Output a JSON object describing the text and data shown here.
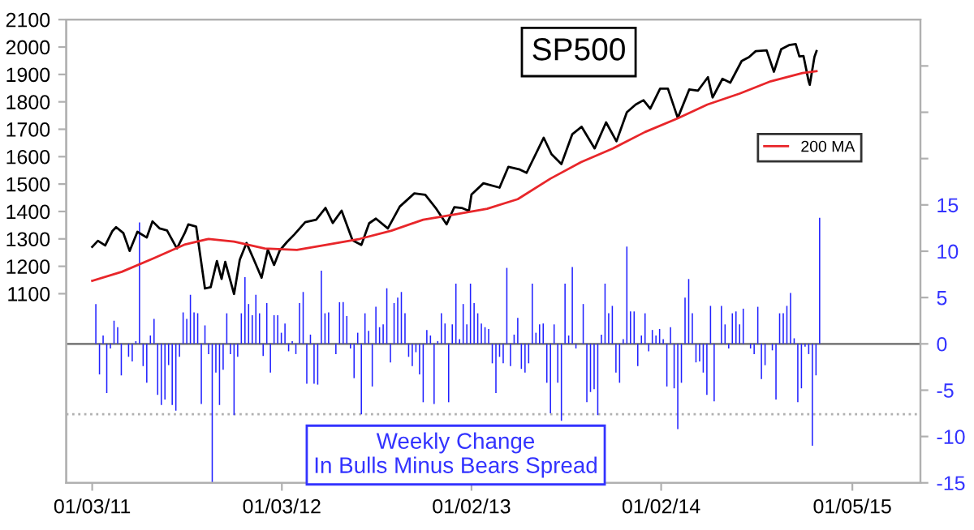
{
  "chart_data": {
    "type": "line",
    "title": "SP500",
    "annotations": [
      "Weekly Change\nIn Bulls Minus Bears Spread"
    ],
    "xlim": [
      "2010-11-14",
      "2015-05-16"
    ],
    "xticks": [
      {
        "value": "2011-01-03",
        "label": "01/03/11"
      },
      {
        "value": "2012-01-03",
        "label": "01/03/12"
      },
      {
        "value": "2013-01-02",
        "label": "01/02/13"
      },
      {
        "value": "2014-01-02",
        "label": "01/02/14"
      },
      {
        "value": "2015-01-05",
        "label": "01/05/15"
      }
    ],
    "ylim": [
      410,
      2100
    ],
    "yticks": [
      1100,
      1200,
      1300,
      1400,
      1500,
      1600,
      1700,
      1800,
      1900,
      2000,
      2100
    ],
    "y2lim": [
      -15,
      35
    ],
    "y2ticks": [
      -15,
      -10,
      -5,
      0,
      5,
      10,
      15,
      {
        "value": 20,
        "label": null
      },
      {
        "value": 25,
        "label": null
      },
      {
        "value": 30,
        "label": null
      }
    ],
    "legend": "upper right",
    "grid": false,
    "ref_lines": [
      {
        "axis": "y2",
        "value": 0,
        "color": "#808080",
        "line_style": "solid"
      },
      {
        "axis": "y2",
        "value": -7.6,
        "color": "#b0b0b0",
        "line_style": "dotted"
      }
    ],
    "series": [
      {
        "color": "#000000",
        "x": [
          "2011-01-03",
          "2011-01-14",
          "2011-01-28",
          "2011-02-11",
          "2011-02-18",
          "2011-03-04",
          "2011-03-16",
          "2011-03-31",
          "2011-04-18",
          "2011-04-29",
          "2011-05-13",
          "2011-05-27",
          "2011-06-15",
          "2011-06-30",
          "2011-07-07",
          "2011-07-22",
          "2011-08-08",
          "2011-08-19",
          "2011-08-31",
          "2011-09-09",
          "2011-09-16",
          "2011-10-03",
          "2011-10-14",
          "2011-10-27",
          "2011-11-09",
          "2011-11-25",
          "2011-12-07",
          "2011-12-19",
          "2011-12-30",
          "2012-01-13",
          "2012-01-27",
          "2012-02-17",
          "2012-03-09",
          "2012-03-27",
          "2012-04-10",
          "2012-04-27",
          "2012-05-18",
          "2012-06-04",
          "2012-06-19",
          "2012-07-02",
          "2012-07-25",
          "2012-08-17",
          "2012-09-14",
          "2012-10-05",
          "2012-10-25",
          "2012-11-15",
          "2012-11-30",
          "2012-12-14",
          "2012-12-28",
          "2013-01-02",
          "2013-01-25",
          "2013-02-25",
          "2013-03-14",
          "2013-04-05",
          "2013-04-18",
          "2013-05-21",
          "2013-06-05",
          "2013-06-24",
          "2013-07-15",
          "2013-08-02",
          "2013-08-27",
          "2013-09-18",
          "2013-10-08",
          "2013-10-28",
          "2013-11-14",
          "2013-11-29",
          "2013-12-12",
          "2013-12-31",
          "2014-01-15",
          "2014-02-03",
          "2014-02-25",
          "2014-03-14",
          "2014-04-02",
          "2014-04-11",
          "2014-04-30",
          "2014-05-15",
          "2014-06-06",
          "2014-06-20",
          "2014-07-03",
          "2014-07-24",
          "2014-08-07",
          "2014-08-21",
          "2014-09-05",
          "2014-09-18",
          "2014-09-25",
          "2014-10-03",
          "2014-10-13",
          "2014-10-15",
          "2014-10-24",
          "2014-10-28"
        ],
        "values": [
          1271,
          1293,
          1276,
          1329,
          1343,
          1321,
          1256,
          1326,
          1305,
          1364,
          1338,
          1331,
          1265,
          1321,
          1353,
          1345,
          1119,
          1124,
          1219,
          1154,
          1216,
          1099,
          1224,
          1285,
          1229,
          1158,
          1261,
          1205,
          1258,
          1289,
          1316,
          1361,
          1370,
          1413,
          1358,
          1403,
          1295,
          1278,
          1357,
          1374,
          1338,
          1418,
          1466,
          1461,
          1413,
          1353,
          1416,
          1413,
          1402,
          1462,
          1503,
          1487,
          1563,
          1553,
          1541,
          1669,
          1609,
          1573,
          1682,
          1709,
          1630,
          1725,
          1656,
          1762,
          1790,
          1806,
          1775,
          1848,
          1848,
          1741,
          1845,
          1841,
          1890,
          1816,
          1884,
          1870,
          1949,
          1963,
          1985,
          1988,
          1910,
          1992,
          2007,
          2011,
          1966,
          1967,
          1874,
          1862,
          1964,
          1985
        ]
      },
      {
        "type": "line",
        "name": "200 MA",
        "color": "#e8262a",
        "x": [
          "2011-01-03",
          "2011-03-01",
          "2011-05-02",
          "2011-07-01",
          "2011-08-15",
          "2011-10-03",
          "2011-12-01",
          "2012-02-01",
          "2012-04-02",
          "2012-06-01",
          "2012-08-01",
          "2012-10-01",
          "2012-12-03",
          "2013-02-01",
          "2013-04-01",
          "2013-06-03",
          "2013-08-01",
          "2013-10-01",
          "2013-12-02",
          "2014-02-03",
          "2014-04-01",
          "2014-06-02",
          "2014-08-01",
          "2014-10-01",
          "2014-10-28"
        ],
        "values": [
          1147,
          1180,
          1230,
          1280,
          1300,
          1290,
          1265,
          1260,
          1280,
          1300,
          1330,
          1370,
          1390,
          1410,
          1445,
          1520,
          1580,
          1630,
          1690,
          1740,
          1790,
          1830,
          1875,
          1905,
          1912
        ]
      },
      {
        "type": "bar",
        "axis": "y2",
        "color": "#2020ff",
        "x": [
          "2011-01-10",
          "2011-01-17",
          "2011-01-24",
          "2011-01-31",
          "2011-02-07",
          "2011-02-14",
          "2011-02-21",
          "2011-02-28",
          "2011-03-07",
          "2011-03-14",
          "2011-03-21",
          "2011-03-28",
          "2011-04-04",
          "2011-04-11",
          "2011-04-18",
          "2011-04-25",
          "2011-05-02",
          "2011-05-09",
          "2011-05-16",
          "2011-05-23",
          "2011-05-30",
          "2011-06-06",
          "2011-06-13",
          "2011-06-20",
          "2011-06-27",
          "2011-07-04",
          "2011-07-11",
          "2011-07-18",
          "2011-07-25",
          "2011-08-01",
          "2011-08-08",
          "2011-08-15",
          "2011-08-22",
          "2011-08-29",
          "2011-09-05",
          "2011-09-12",
          "2011-09-19",
          "2011-09-26",
          "2011-10-03",
          "2011-10-10",
          "2011-10-17",
          "2011-10-24",
          "2011-10-31",
          "2011-11-07",
          "2011-11-14",
          "2011-11-21",
          "2011-11-28",
          "2011-12-05",
          "2011-12-12",
          "2011-12-19",
          "2011-12-26",
          "2012-01-02",
          "2012-01-09",
          "2012-01-16",
          "2012-01-23",
          "2012-01-30",
          "2012-02-06",
          "2012-02-13",
          "2012-02-20",
          "2012-02-27",
          "2012-03-05",
          "2012-03-12",
          "2012-03-19",
          "2012-03-26",
          "2012-04-02",
          "2012-04-09",
          "2012-04-16",
          "2012-04-23",
          "2012-04-30",
          "2012-05-07",
          "2012-05-14",
          "2012-05-21",
          "2012-05-28",
          "2012-06-04",
          "2012-06-11",
          "2012-06-18",
          "2012-06-25",
          "2012-07-02",
          "2012-07-09",
          "2012-07-16",
          "2012-07-23",
          "2012-07-30",
          "2012-08-06",
          "2012-08-13",
          "2012-08-20",
          "2012-08-27",
          "2012-09-03",
          "2012-09-10",
          "2012-09-17",
          "2012-09-24",
          "2012-10-01",
          "2012-10-08",
          "2012-10-15",
          "2012-10-22",
          "2012-10-29",
          "2012-11-05",
          "2012-11-12",
          "2012-11-19",
          "2012-11-26",
          "2012-12-03",
          "2012-12-10",
          "2012-12-17",
          "2012-12-24",
          "2012-12-31",
          "2013-01-07",
          "2013-01-14",
          "2013-01-21",
          "2013-01-28",
          "2013-02-04",
          "2013-02-11",
          "2013-02-18",
          "2013-02-25",
          "2013-03-04",
          "2013-03-11",
          "2013-03-18",
          "2013-03-25",
          "2013-04-01",
          "2013-04-08",
          "2013-04-15",
          "2013-04-22",
          "2013-04-29",
          "2013-05-06",
          "2013-05-13",
          "2013-05-20",
          "2013-05-27",
          "2013-06-03",
          "2013-06-10",
          "2013-06-17",
          "2013-06-24",
          "2013-07-01",
          "2013-07-08",
          "2013-07-15",
          "2013-07-22",
          "2013-07-29",
          "2013-08-05",
          "2013-08-12",
          "2013-08-19",
          "2013-08-26",
          "2013-09-02",
          "2013-09-09",
          "2013-09-16",
          "2013-09-23",
          "2013-09-30",
          "2013-10-07",
          "2013-10-14",
          "2013-10-21",
          "2013-10-28",
          "2013-11-04",
          "2013-11-11",
          "2013-11-18",
          "2013-11-25",
          "2013-12-02",
          "2013-12-09",
          "2013-12-16",
          "2013-12-23",
          "2013-12-30",
          "2014-01-06",
          "2014-01-13",
          "2014-01-20",
          "2014-01-27",
          "2014-02-03",
          "2014-02-10",
          "2014-02-17",
          "2014-02-24",
          "2014-03-03",
          "2014-03-10",
          "2014-03-17",
          "2014-03-24",
          "2014-03-31",
          "2014-04-07",
          "2014-04-14",
          "2014-04-21",
          "2014-04-28",
          "2014-05-05",
          "2014-05-12",
          "2014-05-19",
          "2014-05-26",
          "2014-06-02",
          "2014-06-09",
          "2014-06-16",
          "2014-06-23",
          "2014-06-30",
          "2014-07-07",
          "2014-07-14",
          "2014-07-21",
          "2014-07-28",
          "2014-08-04",
          "2014-08-11",
          "2014-08-18",
          "2014-08-25",
          "2014-09-01",
          "2014-09-08",
          "2014-09-15",
          "2014-09-22",
          "2014-09-29",
          "2014-10-06",
          "2014-10-13",
          "2014-10-20",
          "2014-10-27",
          "2014-11-03"
        ],
        "values": [
          4.3,
          -3.3,
          0.9,
          -5.3,
          -0.5,
          2.5,
          1.8,
          -3.4,
          null,
          -1.4,
          -1.9,
          0.3,
          13.1,
          -2.4,
          -4.2,
          0.9,
          2.7,
          -5.5,
          -6.6,
          -6.0,
          -2.3,
          -6.6,
          -7.2,
          -1.4,
          3.4,
          2.7,
          5.3,
          3.4,
          3.3,
          -6.5,
          2.0,
          -1.1,
          -15,
          -3.1,
          -6.6,
          -2.8,
          3.3,
          -1.1,
          -7.7,
          -1.4,
          3.3,
          7.2,
          4.3,
          3.1,
          5.3,
          3.3,
          -1.3,
          4.4,
          -3.1,
          3.1,
          3.1,
          1.2,
          2.2,
          -0.8,
          0.3,
          -1.1,
          4.4,
          5.6,
          -4.3,
          1.0,
          -4.3,
          -4.4,
          7.9,
          3.3,
          3.4,
          0,
          -1.1,
          4.5,
          4.5,
          3.0,
          -0.5,
          -3.7,
          1.2,
          -7.6,
          3.3,
          1.4,
          -4.6,
          4.0,
          1.8,
          2.1,
          6.0,
          -2.0,
          4.4,
          5.0,
          5.6,
          3.3,
          -1.4,
          -2.4,
          -0.9,
          -3.3,
          -6.3,
          1.5,
          0.9,
          -6.5,
          0.3,
          3.3,
          2.2,
          -6.3,
          2.1,
          6.5,
          0.5,
          4.3,
          2.1,
          6.5,
          4.4,
          3.3,
          2.2,
          1.8,
          1.6,
          -2.1,
          -5.3,
          -1.4,
          -2.1,
          8.2,
          -2.4,
          1.0,
          2.8,
          -2.7,
          -3.1,
          -2.1,
          6.5,
          1.2,
          2.1,
          2.2,
          -4.2,
          -7.5,
          2.1,
          -4.2,
          -8.3,
          6.5,
          0.9,
          8.3,
          -0.5,
          0,
          4.3,
          -6.3,
          -5.2,
          -4.9,
          -7.7,
          1.0,
          6.5,
          3.3,
          4.1,
          -3.1,
          -4.2,
          0.5,
          10.5,
          3.5,
          3.5,
          -2.4,
          0.9,
          3.3,
          -0.8,
          1.5,
          0.9,
          1.6,
          0.5,
          -4.6,
          1.8,
          -4.8,
          -9.2,
          -4.2,
          5.0,
          7.0,
          3.3,
          -2.0,
          -1.9,
          -3.1,
          -5.5,
          4.1,
          -6.2,
          null,
          4.1,
          2.1,
          -0.5,
          3.3,
          3.5,
          2.1,
          3.8,
          null,
          -0.5,
          -1.1,
          4.0,
          -3.8,
          -2.3,
          null,
          -0.7,
          -6.0,
          3.3,
          3.3,
          4.1,
          5.5,
          0.6,
          -6.3,
          -4.8,
          -0.3,
          -1.1,
          -11.0,
          -3.4,
          13.6
        ]
      }
    ]
  }
}
